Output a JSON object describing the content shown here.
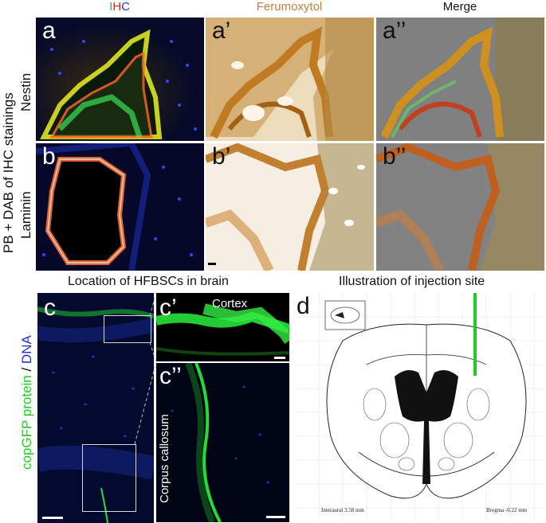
{
  "column_headers": {
    "ihc": {
      "I": "I",
      "H": "H",
      "C": "C"
    },
    "ferumoxytol": "Ferumoxytol",
    "merge": "Merge"
  },
  "row_axis_label": "PB + DAB of IHC stainings",
  "rows": {
    "nestin": "Nestin",
    "laminin": "Laminin"
  },
  "panel_labels": {
    "a": "a",
    "a1": "a’",
    "a2": "a’’",
    "b": "b",
    "b1": "b’",
    "b2": "b’’",
    "c": "c",
    "c1": "c’",
    "c2": "c’’",
    "d": "d"
  },
  "section_titles": {
    "location": "Location of HFBSCs in brain",
    "illustration": "Illustration of injection site"
  },
  "c_axis_label": {
    "green_part": "copGFP protein",
    "sep": " / ",
    "blue_part": "DNA"
  },
  "c1_region": "Cortex",
  "c2_region": "Corpus callosum",
  "atlas": {
    "interaural": "Interaural 3.58 mm",
    "bregma": "Bregma -0.22 mm"
  },
  "colors": {
    "green": "#22dd22",
    "red": "#ee2222",
    "blue": "#2233dd",
    "brown": "#b87333",
    "injection": "#22cc22"
  }
}
